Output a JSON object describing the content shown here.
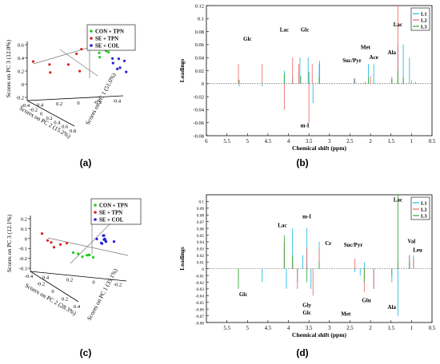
{
  "panels": {
    "a": {
      "caption": "(a)"
    },
    "b": {
      "caption": "(b)"
    },
    "c": {
      "caption": "(c)"
    },
    "d": {
      "caption": "(d)"
    }
  },
  "colors": {
    "con_tpn": "#22cc22",
    "se_tpn": "#dd2222",
    "se_col": "#2222dd",
    "L1": "#1fb8e0",
    "L2": "#ee6666",
    "L3": "#33aa33"
  },
  "chart_data": [
    {
      "panel": "a",
      "type": "scatter",
      "dimensions": 3,
      "xlabel": "Scores on PC 1 (51.0%)",
      "ylabel": "Scores on PC 2 (15.2%)",
      "zlabel": "Scores on PC 3 (12.0%)",
      "xticks": [
        "0.4",
        "0.2",
        "0",
        "-0.2",
        "-0.4"
      ],
      "yticks": [
        "0.8",
        "0.6",
        "0.4",
        "0.2",
        "0",
        "-0.2",
        "-0.4"
      ],
      "zticks": [
        "0.6",
        "0.4",
        "0.2",
        "0",
        "-0.2"
      ],
      "legend": [
        "CON + TPN",
        "SE + TPN",
        "SE + COL"
      ],
      "legend_position": "top-right",
      "series": [
        {
          "name": "CON + TPN",
          "points": [
            [
              -0.25,
              0.1,
              0.55
            ],
            [
              -0.3,
              0.15,
              0.5
            ],
            [
              -0.2,
              0.05,
              0.42
            ],
            [
              -0.28,
              -0.02,
              0.35
            ],
            [
              -0.15,
              0.0,
              0.3
            ],
            [
              -0.22,
              0.08,
              0.25
            ],
            [
              -0.35,
              0.12,
              0.45
            ]
          ]
        },
        {
          "name": "SE + TPN",
          "points": [
            [
              0.3,
              0.75,
              0.2
            ],
            [
              0.2,
              0.55,
              0.1
            ],
            [
              0.15,
              0.6,
              -0.05
            ],
            [
              0.05,
              0.2,
              0.28
            ],
            [
              0.1,
              0.3,
              0.05
            ],
            [
              0.0,
              0.2,
              -0.1
            ],
            [
              0.05,
              0.1,
              0.35
            ]
          ]
        },
        {
          "name": "SE + COL",
          "points": [
            [
              -0.3,
              -0.2,
              0.15
            ],
            [
              -0.35,
              -0.25,
              0.1
            ],
            [
              -0.25,
              -0.15,
              0.05
            ],
            [
              -0.2,
              -0.3,
              -0.15
            ],
            [
              -0.3,
              -0.35,
              -0.2
            ],
            [
              -0.28,
              -0.1,
              0.18
            ],
            [
              -0.32,
              -0.2,
              -0.05
            ]
          ]
        }
      ]
    },
    {
      "panel": "b",
      "type": "line",
      "xlabel": "Chemical shift (ppm)",
      "ylabel": "Loadings",
      "xlim": [
        6,
        0.5
      ],
      "ylim": [
        -0.08,
        0.12
      ],
      "x_reversed": true,
      "xticks": [
        6,
        5.5,
        5,
        4.5,
        4,
        3.5,
        3,
        2.5,
        2,
        1.5,
        1,
        0.5
      ],
      "yticks": [
        -0.08,
        -0.06,
        -0.04,
        -0.02,
        0,
        0.02,
        0.04,
        0.06,
        0.08,
        0.1,
        0.12
      ],
      "legend": [
        "L1",
        "L2",
        "L3"
      ],
      "legend_position": "top-right",
      "series": [
        {
          "name": "L1",
          "color": "L1",
          "x": [
            5.2,
            4.64,
            4.1,
            3.9,
            3.72,
            3.52,
            3.4,
            3.25,
            2.38,
            2.05,
            1.92,
            1.48,
            1.33,
            1.2,
            1.05,
            0.9
          ],
          "y": [
            -0.004,
            -0.004,
            0.02,
            0.01,
            0.04,
            0.04,
            -0.03,
            0.03,
            0.008,
            0.03,
            0.03,
            0.01,
            0.06,
            0.06,
            0.04,
            0.003
          ]
        },
        {
          "name": "L2",
          "color": "L2",
          "x": [
            5.22,
            4.64,
            4.1,
            3.9,
            3.75,
            3.5,
            3.42,
            3.24,
            2.4,
            2.13,
            2.0,
            1.48,
            1.33,
            1.2,
            1.0
          ],
          "y": [
            0.03,
            0.03,
            -0.04,
            0.04,
            0.03,
            -0.06,
            0.03,
            0.035,
            0.008,
            0.003,
            0.012,
            0.01,
            0.12,
            0.01,
            0.005
          ]
        },
        {
          "name": "L3",
          "color": "L3",
          "x": [
            5.2,
            4.1,
            3.7,
            3.5,
            3.25,
            2.05,
            1.48,
            1.33,
            1.2
          ],
          "y": [
            0.006,
            0.015,
            0.012,
            0.018,
            0.01,
            0.01,
            0.006,
            0.02,
            0.01
          ]
        }
      ],
      "annotations": [
        {
          "text": "Glc",
          "x": 5.0,
          "y": 0.066
        },
        {
          "text": "Lac",
          "x": 4.1,
          "y": 0.08
        },
        {
          "text": "Glc",
          "x": 3.6,
          "y": 0.08
        },
        {
          "text": "Suc/Pyr",
          "x": 2.45,
          "y": 0.033
        },
        {
          "text": "Met",
          "x": 2.12,
          "y": 0.053
        },
        {
          "text": "Ace",
          "x": 1.92,
          "y": 0.038
        },
        {
          "text": "Ala",
          "x": 1.48,
          "y": 0.045
        },
        {
          "text": "Lac",
          "x": 1.33,
          "y": 0.088
        },
        {
          "text": "m-I",
          "x": 3.6,
          "y": -0.067
        }
      ]
    },
    {
      "panel": "c",
      "type": "scatter",
      "dimensions": 3,
      "xlabel": "Scores on PC 1 (35.1%)",
      "ylabel": "Scores on PC 2 (28.3%)",
      "zlabel": "Scores on PC 3 (12.1%)",
      "xticks": [
        "0.4",
        "0.2",
        "0",
        "-0.2"
      ],
      "yticks": [
        "0.4",
        "0.2",
        "0",
        "-0.2",
        "-0.4"
      ],
      "zticks": [
        "0.2",
        "0.1",
        "0",
        "-0.1",
        "-0.2",
        "-0.3"
      ],
      "legend": [
        "CON + TPN",
        "SE + TPN",
        "SE + COL"
      ],
      "legend_position": "top-right",
      "series": [
        {
          "name": "CON + TPN",
          "points": [
            [
              0.05,
              -0.05,
              -0.22
            ],
            [
              0.1,
              0.0,
              -0.25
            ],
            [
              0.0,
              0.05,
              -0.2
            ],
            [
              0.12,
              0.05,
              -0.2
            ],
            [
              -0.05,
              0.0,
              -0.23
            ],
            [
              0.15,
              0.1,
              -0.18
            ],
            [
              0.08,
              -0.1,
              -0.24
            ]
          ]
        },
        {
          "name": "SE + TPN",
          "points": [
            [
              0.35,
              0.4,
              0.12
            ],
            [
              0.3,
              0.3,
              -0.02
            ],
            [
              0.25,
              0.2,
              -0.06
            ],
            [
              0.35,
              0.3,
              0.0
            ],
            [
              0.3,
              0.25,
              -0.1
            ],
            [
              0.2,
              0.15,
              -0.04
            ]
          ]
        },
        {
          "name": "SE + COL",
          "points": [
            [
              -0.2,
              0.0,
              0.12
            ],
            [
              -0.25,
              0.05,
              0.09
            ],
            [
              -0.15,
              -0.05,
              0.1
            ],
            [
              -0.3,
              0.1,
              0.08
            ],
            [
              -0.2,
              0.0,
              0.06
            ],
            [
              -0.1,
              0.0,
              0.05
            ],
            [
              -0.3,
              -0.05,
              0.04
            ],
            [
              -0.25,
              0.1,
              0.03
            ],
            [
              -0.2,
              0.05,
              0.02
            ],
            [
              -0.15,
              -0.1,
              0.0
            ]
          ]
        }
      ]
    },
    {
      "panel": "d",
      "type": "line",
      "xlabel": "Chemical shift (ppm)",
      "ylabel": "Loadings",
      "xlim": [
        6,
        0.5
      ],
      "ylim": [
        -0.08,
        0.11
      ],
      "x_reversed": true,
      "xticks": [
        5.5,
        5,
        4.5,
        4,
        3.5,
        3,
        2.5,
        2,
        1.5,
        1,
        0.5
      ],
      "yticks": [
        -0.08,
        -0.07,
        -0.06,
        -0.05,
        -0.04,
        -0.03,
        -0.02,
        -0.01,
        0,
        0.01,
        0.02,
        0.03,
        0.04,
        0.05,
        0.06,
        0.07,
        0.08,
        0.09,
        0.1
      ],
      "legend": [
        "L1",
        "L2",
        "L3"
      ],
      "legend_position": "top-right",
      "series": [
        {
          "name": "L1",
          "color": "L1",
          "x": [
            5.22,
            4.64,
            4.1,
            4.05,
            3.9,
            3.78,
            3.65,
            3.55,
            3.45,
            3.25,
            2.38,
            2.25,
            2.15,
            1.92,
            1.48,
            1.33,
            1.05,
            0.95
          ],
          "y": [
            -0.02,
            -0.02,
            0.03,
            -0.03,
            0.06,
            -0.02,
            0.02,
            0.06,
            -0.03,
            0.04,
            -0.005,
            -0.01,
            0.01,
            -0.03,
            -0.02,
            -0.07,
            0.02,
            0.02
          ]
        },
        {
          "name": "L2",
          "color": "L2",
          "x": [
            5.22,
            4.1,
            3.9,
            3.78,
            3.55,
            3.4,
            3.25,
            2.38,
            2.15,
            1.92,
            1.33,
            1.05,
            0.95
          ],
          "y": [
            -0.01,
            0.04,
            0.015,
            -0.03,
            0.03,
            -0.04,
            0.03,
            0.015,
            -0.035,
            -0.03,
            0.01,
            0.02,
            0.015
          ]
        },
        {
          "name": "L3",
          "color": "L3",
          "x": [
            5.22,
            4.1,
            3.9,
            3.55,
            3.25,
            2.15,
            1.48,
            1.33,
            1.05
          ],
          "y": [
            -0.03,
            0.05,
            0.02,
            -0.02,
            0.01,
            -0.02,
            -0.01,
            0.11,
            0.01
          ]
        }
      ],
      "annotations": [
        {
          "text": "Lac",
          "x": 4.15,
          "y": 0.062
        },
        {
          "text": "m-I",
          "x": 3.55,
          "y": 0.075
        },
        {
          "text": "Cr",
          "x": 3.03,
          "y": 0.035
        },
        {
          "text": "Suc/Pyr",
          "x": 2.42,
          "y": 0.033
        },
        {
          "text": "Lac",
          "x": 1.33,
          "y": 0.1
        },
        {
          "text": "Val",
          "x": 1.0,
          "y": 0.038
        },
        {
          "text": "Leu",
          "x": 0.85,
          "y": 0.025
        },
        {
          "text": "Glc",
          "x": 5.1,
          "y": -0.041
        },
        {
          "text": "Gly",
          "x": 3.55,
          "y": -0.057
        },
        {
          "text": "Glc",
          "x": 3.55,
          "y": -0.068
        },
        {
          "text": "Glu",
          "x": 2.1,
          "y": -0.05
        },
        {
          "text": "Met",
          "x": 2.6,
          "y": -0.07
        },
        {
          "text": "Ala",
          "x": 1.48,
          "y": -0.06
        }
      ]
    }
  ]
}
